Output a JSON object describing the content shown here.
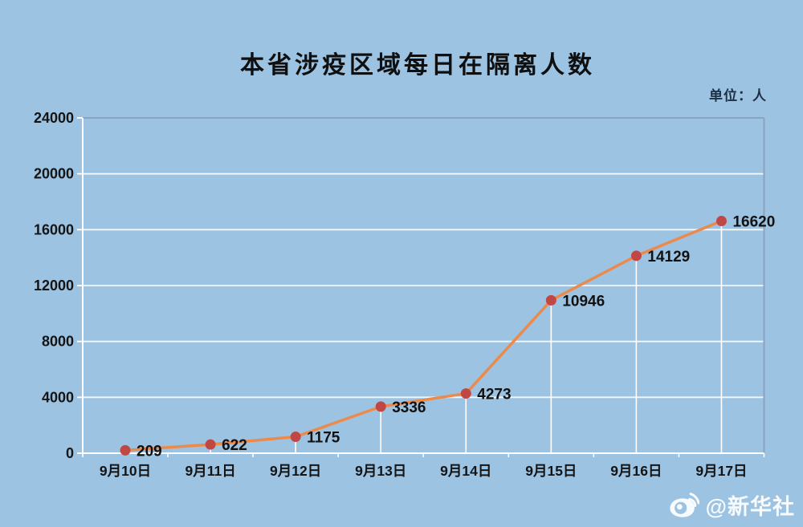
{
  "header": {
    "title": "本省涉疫区域每日在隔离人数",
    "unit_label": "单位：人"
  },
  "watermark": {
    "icon": "weibo-icon",
    "source_handle": "@新华社"
  },
  "chart_data": {
    "type": "line",
    "title": "本省涉疫区域每日在隔离人数",
    "unit": "人",
    "categories": [
      "9月10日",
      "9月11日",
      "9月12日",
      "9月13日",
      "9月14日",
      "9月15日",
      "9月16日",
      "9月17日"
    ],
    "series": [
      {
        "name": "在隔离人数",
        "values": [
          209,
          622,
          1175,
          3336,
          4273,
          10946,
          14129,
          16620
        ]
      }
    ],
    "data_labels": [
      "209",
      "622",
      "1175",
      "3336",
      "4273",
      "10946",
      "14129",
      "16620"
    ],
    "xlabel": "",
    "ylabel": "",
    "ylim": [
      0,
      24000
    ],
    "yticks": [
      0,
      4000,
      8000,
      12000,
      16000,
      20000,
      24000
    ],
    "grid": "horizontal gridlines on; vertical drop lines from each point to x-axis",
    "legend_position": "none",
    "colors": {
      "background": "#9dc3e2",
      "line": "#ec8a4c",
      "marker": "#c14744",
      "gridline": "#f2f7fc",
      "axis": "#ffffff",
      "frame_border": "#8aa3c0",
      "text": "#141414"
    }
  }
}
